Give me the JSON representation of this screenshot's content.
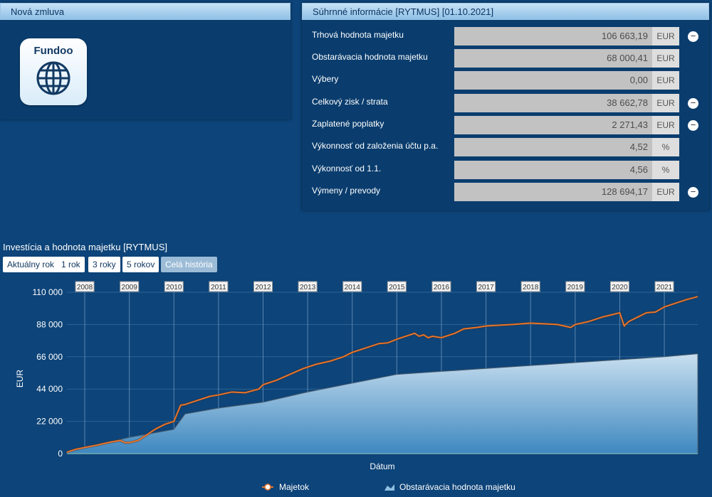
{
  "left_panel": {
    "title": "Nová zmluva",
    "tile_label": "Fundoo"
  },
  "right_panel": {
    "title": "Súhrnné informácie [RYTMUS] [01.10.2021]",
    "rows": [
      {
        "label": "Trhová hodnota majetku",
        "value": "106 663,19",
        "unit": "EUR",
        "button": "−"
      },
      {
        "label": "Obstarávacia hodnota majetku",
        "value": "68 000,41",
        "unit": "EUR",
        "button": ""
      },
      {
        "label": "Výbery",
        "value": "0,00",
        "unit": "EUR",
        "button": ""
      },
      {
        "label": "Celkový zisk / strata",
        "value": "38 662,78",
        "unit": "EUR",
        "button": "−"
      },
      {
        "label": "Zaplatené poplatky",
        "value": "2 271,43",
        "unit": "EUR",
        "button": "−"
      },
      {
        "label": "Výkonnosť od založenia účtu p.a.",
        "value": "4,52",
        "unit": "%",
        "button": ""
      },
      {
        "label": "Výkonnosť od 1.1.",
        "value": "4,56",
        "unit": "%",
        "button": ""
      },
      {
        "label": "Výmeny / prevody",
        "value": "128 694,17",
        "unit": "EUR",
        "button": "−"
      }
    ]
  },
  "chart_section": {
    "title": "Investícia a hodnota majetku [RYTMUS]",
    "range_buttons": [
      "Aktuálny rok",
      "1 rok",
      "3 roky",
      "5 rokov",
      "Celá história"
    ],
    "active_range": "Celá história"
  },
  "chart_data": {
    "type": "area",
    "xlabel": "Dátum",
    "ylabel": "EUR",
    "ylim": [
      0,
      110000
    ],
    "y_ticks": [
      "0",
      "22 000",
      "44 000",
      "66 000",
      "88 000",
      "110 000"
    ],
    "y_tick_values": [
      0,
      22000,
      44000,
      66000,
      88000,
      110000
    ],
    "x_range": [
      2007.6,
      2021.75
    ],
    "years": [
      "2008",
      "2009",
      "2010",
      "2011",
      "2012",
      "2013",
      "2014",
      "2015",
      "2016",
      "2017",
      "2018",
      "2019",
      "2020",
      "2021"
    ],
    "series": [
      {
        "name": "Majetok",
        "type": "line",
        "color": "#e8742c",
        "x": [
          2007.6,
          2007.8,
          2008.0,
          2008.3,
          2008.6,
          2008.8,
          2008.9,
          2009.0,
          2009.2,
          2009.4,
          2009.6,
          2009.8,
          2010.0,
          2010.15,
          2010.25,
          2010.3,
          2010.5,
          2010.8,
          2011.0,
          2011.3,
          2011.6,
          2011.9,
          2012.0,
          2012.3,
          2012.6,
          2012.9,
          2013.2,
          2013.5,
          2013.8,
          2014.0,
          2014.3,
          2014.6,
          2014.8,
          2015.0,
          2015.2,
          2015.4,
          2015.5,
          2015.6,
          2015.7,
          2015.8,
          2016.0,
          2016.3,
          2016.5,
          2016.8,
          2017.0,
          2017.3,
          2017.6,
          2018.0,
          2018.3,
          2018.6,
          2018.9,
          2019.0,
          2019.3,
          2019.6,
          2019.8,
          2020.0,
          2020.1,
          2020.2,
          2020.4,
          2020.6,
          2020.8,
          2021.0,
          2021.3,
          2021.5,
          2021.75
        ],
        "y": [
          1000,
          3000,
          4200,
          6000,
          8000,
          9000,
          7500,
          7500,
          9000,
          13000,
          17000,
          20000,
          22000,
          33000,
          33500,
          34000,
          36000,
          39000,
          40000,
          42000,
          41500,
          44000,
          47000,
          50000,
          54000,
          58000,
          61000,
          63000,
          66000,
          69000,
          72000,
          75000,
          75500,
          78000,
          80000,
          82000,
          80000,
          81000,
          79000,
          80000,
          79000,
          82000,
          85000,
          86000,
          87000,
          87500,
          88000,
          89000,
          88500,
          88000,
          86000,
          88000,
          90000,
          93000,
          94500,
          96000,
          87000,
          90000,
          93000,
          96000,
          96500,
          100000,
          103000,
          105000,
          107000
        ]
      },
      {
        "name": "Obstarávacia hodnota majetku",
        "type": "area",
        "x": [
          2007.6,
          2008.0,
          2009.0,
          2010.0,
          2010.25,
          2011.0,
          2012.0,
          2013.0,
          2014.0,
          2015.0,
          2016.0,
          2017.0,
          2018.0,
          2019.0,
          2020.0,
          2021.0,
          2021.75
        ],
        "y": [
          1000,
          4200,
          11000,
          16500,
          27000,
          31000,
          35000,
          42000,
          48000,
          54000,
          56000,
          58000,
          60000,
          62000,
          64000,
          66000,
          68000
        ]
      }
    ],
    "legend": [
      "Majetok",
      "Obstarávacia hodnota majetku"
    ],
    "legend_position": "bottom-center",
    "grid": true
  }
}
